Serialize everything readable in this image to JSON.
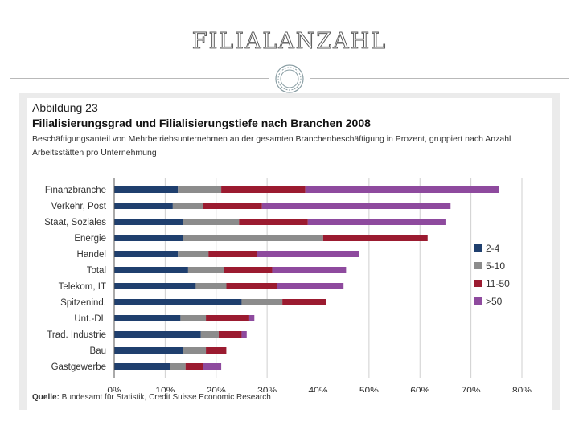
{
  "slide": {
    "title": "Filialanzahl"
  },
  "figure": {
    "number": "Abbildung 23",
    "title": "Filialisierungsgrad und Filialisierungstiefe nach Branchen 2008",
    "subtitle": "Beschäftigungsanteil von Mehrbetriebsunternehmen an der gesamten Branchenbeschäftigung in Prozent, gruppiert nach Anzahl Arbeitsstätten pro Unternehmung",
    "source_label": "Quelle:",
    "source_text": " Bundesamt für Statistik, Credit Suisse Economic Research"
  },
  "chart_data": {
    "type": "bar",
    "orientation": "horizontal",
    "stacked": true,
    "categories": [
      "Finanzbranche",
      "Verkehr, Post",
      "Staat, Soziales",
      "Energie",
      "Handel",
      "Total",
      "Telekom, IT",
      "Spitzenind.",
      "Unt.-DL",
      "Trad. Industrie",
      "Bau",
      "Gastgewerbe"
    ],
    "series": [
      {
        "name": "2-4",
        "color": "#1f3f6e",
        "values": [
          12.5,
          11.5,
          13.5,
          13.5,
          12.5,
          14.5,
          16,
          25,
          13,
          17,
          13.5,
          11
        ]
      },
      {
        "name": "5-10",
        "color": "#8c8c8c",
        "values": [
          8.5,
          6,
          11,
          27.5,
          6,
          7,
          6,
          8,
          5,
          3.5,
          4.5,
          3
        ]
      },
      {
        "name": "11-50",
        "color": "#9b1b30",
        "values": [
          16.5,
          11.5,
          13.5,
          20.5,
          9.5,
          9.5,
          10,
          8.5,
          8.5,
          4.5,
          4,
          3.5
        ]
      },
      {
        "name": ">50",
        "color": "#8e4a9e",
        "values": [
          38,
          37,
          27,
          0,
          20,
          14.5,
          13,
          0,
          1,
          1,
          0,
          3.5
        ]
      }
    ],
    "xlim": [
      0,
      80
    ],
    "xticks": [
      "0%",
      "10%",
      "20%",
      "30%",
      "40%",
      "50%",
      "60%",
      "70%",
      "80%"
    ],
    "grid": true,
    "legend_position": "right"
  }
}
